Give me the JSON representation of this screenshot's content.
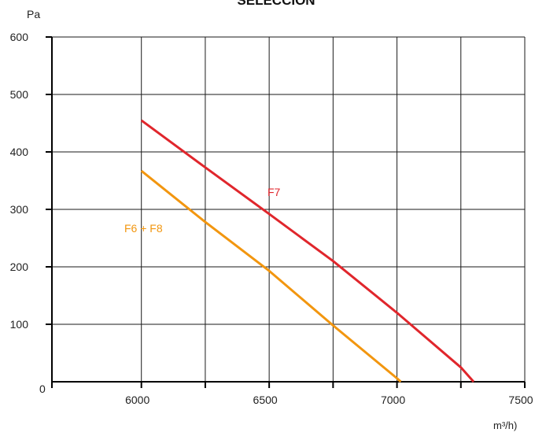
{
  "chart_data": {
    "type": "line",
    "title": "SELECCIÓN",
    "ylabel": "Pa",
    "xlabel": "m³/h)",
    "origin_label": "0",
    "xlim": [
      5650,
      7500
    ],
    "ylim": [
      0,
      600
    ],
    "x_ticks": [
      6000,
      6500,
      7000,
      7500
    ],
    "x_minor_ticks": [
      6250,
      6750,
      7250
    ],
    "y_ticks": [
      100,
      200,
      300,
      400,
      500,
      600
    ],
    "grid": true,
    "series": [
      {
        "name": "F7",
        "color": "#e0262c",
        "x": [
          6000,
          6250,
          6500,
          6750,
          7000,
          7250,
          7300
        ],
        "y": [
          455,
          373,
          292,
          210,
          120,
          25,
          0
        ]
      },
      {
        "name": "F6 + F8",
        "color": "#f2960f",
        "x": [
          6000,
          6250,
          6500,
          6750,
          7000,
          7015
        ],
        "y": [
          367,
          278,
          193,
          98,
          6,
          0
        ]
      }
    ]
  }
}
